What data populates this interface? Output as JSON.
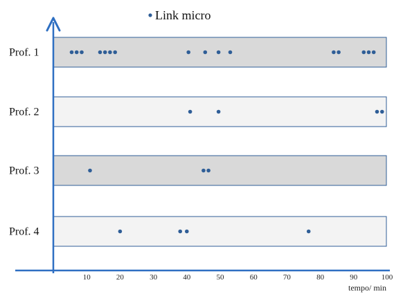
{
  "chart_data": {
    "type": "scatter",
    "legend": {
      "label": "Link micro",
      "color": "#2f5e97",
      "position": "top-center"
    },
    "xlabel": "tempo/ min",
    "xlim": [
      0,
      100
    ],
    "xticks": [
      10,
      20,
      30,
      40,
      50,
      60,
      70,
      80,
      90,
      100
    ],
    "rows": [
      {
        "label": "Prof. 1",
        "band": "#d9d9d9",
        "x": [
          5.5,
          7,
          8.5,
          14,
          15.5,
          17,
          18.5,
          40.5,
          45.5,
          49.5,
          53,
          84,
          85.5,
          93,
          94.5,
          96
        ]
      },
      {
        "label": "Prof. 2",
        "band": "#f3f3f3",
        "x": [
          41,
          49.5,
          97,
          98.5
        ]
      },
      {
        "label": "Prof. 3",
        "band": "#d9d9d9",
        "x": [
          11,
          45,
          46.5
        ]
      },
      {
        "label": "Prof. 4",
        "band": "#f3f3f3",
        "x": [
          20,
          38,
          40,
          76.5
        ]
      }
    ],
    "colors": {
      "axis": "#2e6fc2",
      "dots": "#2f5e97",
      "bandBorder": "#2f5e97"
    }
  }
}
